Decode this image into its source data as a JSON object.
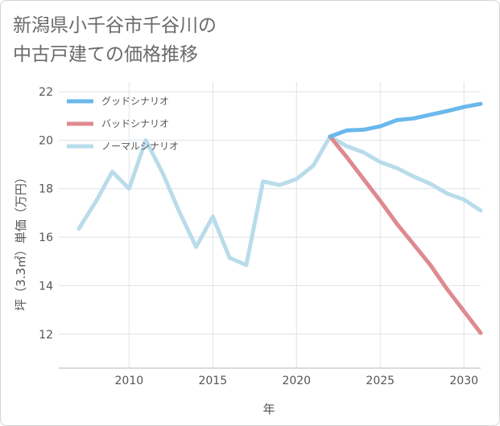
{
  "page": {
    "title_line1": "新潟県小千谷市千谷川の",
    "title_line2": "中古戸建ての価格推移"
  },
  "chart_data": {
    "type": "line",
    "title": "新潟県小千谷市千谷川の中古戸建ての価格推移",
    "xlabel": "年",
    "ylabel": "坪（3.3㎡）単価（万円）",
    "xlim": [
      2005.8,
      2031
    ],
    "ylim": [
      10.6,
      22.4
    ],
    "xticks": [
      2010,
      2015,
      2020,
      2025,
      2030
    ],
    "yticks": [
      12,
      14,
      16,
      18,
      20,
      22
    ],
    "grid": true,
    "legend_position": "top-left",
    "series": [
      {
        "name": "グッドシナリオ",
        "color": "#6ab8ec",
        "x": [
          2022,
          2023,
          2024,
          2025,
          2026,
          2027,
          2028,
          2029,
          2030,
          2031
        ],
        "y": [
          20.15,
          20.4,
          20.43,
          20.57,
          20.83,
          20.9,
          21.05,
          21.2,
          21.37,
          21.5
        ]
      },
      {
        "name": "バッドシナリオ",
        "color": "#de8a90",
        "x": [
          2022,
          2023,
          2024,
          2025,
          2026,
          2027,
          2028,
          2029,
          2030,
          2031
        ],
        "y": [
          20.15,
          19.3,
          18.4,
          17.5,
          16.55,
          15.7,
          14.85,
          13.85,
          12.95,
          12.05
        ]
      },
      {
        "name": "ノーマルシナリオ",
        "color": "#b9dcea",
        "x": [
          2007,
          2008,
          2009,
          2010,
          2011,
          2012,
          2013,
          2014,
          2015,
          2016,
          2017,
          2018,
          2019,
          2020,
          2021,
          2022,
          2023,
          2024,
          2025,
          2026,
          2027,
          2028,
          2029,
          2030,
          2031
        ],
        "y": [
          16.35,
          17.45,
          18.7,
          18.0,
          20.0,
          18.65,
          17.05,
          15.6,
          16.85,
          15.15,
          14.85,
          18.3,
          18.15,
          18.4,
          18.95,
          20.15,
          19.75,
          19.5,
          19.1,
          18.85,
          18.5,
          18.2,
          17.8,
          17.55,
          17.1
        ]
      }
    ]
  }
}
